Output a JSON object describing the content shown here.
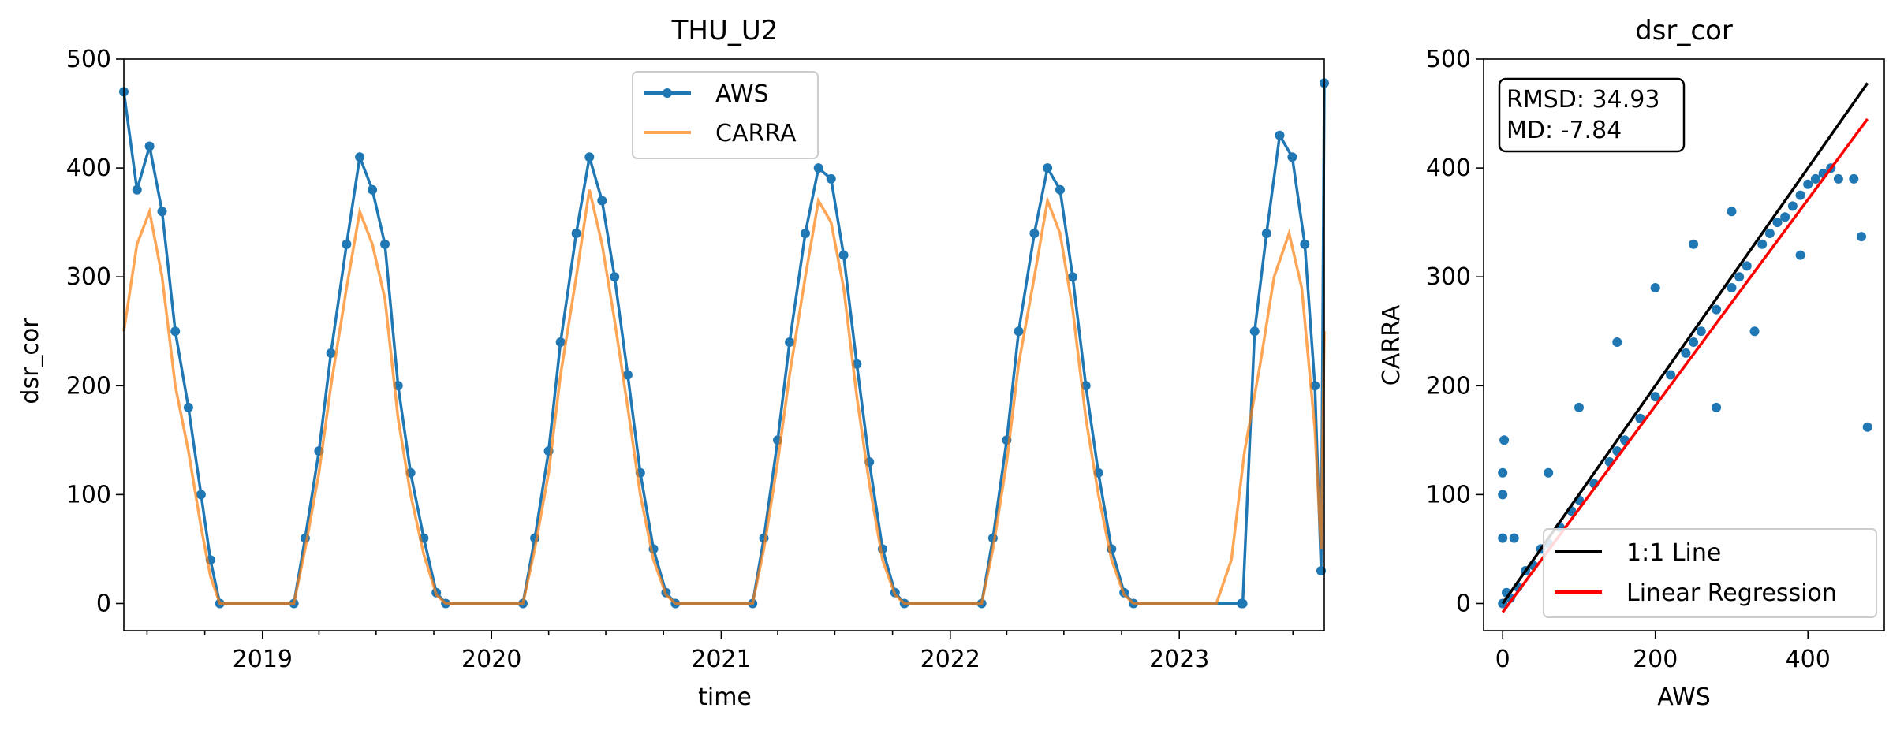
{
  "chart_data": [
    {
      "type": "line",
      "title": "THU_U2",
      "xlabel": "time",
      "ylabel": "dsr_cor",
      "xlim": [
        "2018-05-25",
        "2023-08-20"
      ],
      "ylim": [
        -25,
        500
      ],
      "x_ticks": [
        "2019",
        "2020",
        "2021",
        "2022",
        "2023"
      ],
      "y_ticks": [
        0,
        100,
        200,
        300,
        400,
        500
      ],
      "legend": {
        "placement": "top-center",
        "entries": [
          "AWS",
          "CARRA"
        ]
      },
      "series": [
        {
          "name": "AWS",
          "color": "#1f77b4",
          "marker": "circle",
          "x": [
            "2018-05-25",
            "2018-06-15",
            "2018-07-05",
            "2018-07-25",
            "2018-08-15",
            "2018-09-05",
            "2018-09-25",
            "2018-10-10",
            "2018-10-25",
            "2019-02-20",
            "2019-03-10",
            "2019-04-01",
            "2019-04-20",
            "2019-05-15",
            "2019-06-05",
            "2019-06-25",
            "2019-07-15",
            "2019-08-05",
            "2019-08-25",
            "2019-09-15",
            "2019-10-05",
            "2019-10-20",
            "2020-02-20",
            "2020-03-10",
            "2020-04-01",
            "2020-04-20",
            "2020-05-15",
            "2020-06-05",
            "2020-06-25",
            "2020-07-15",
            "2020-08-05",
            "2020-08-25",
            "2020-09-15",
            "2020-10-05",
            "2020-10-20",
            "2021-02-20",
            "2021-03-10",
            "2021-04-01",
            "2021-04-20",
            "2021-05-15",
            "2021-06-05",
            "2021-06-25",
            "2021-07-15",
            "2021-08-05",
            "2021-08-25",
            "2021-09-15",
            "2021-10-05",
            "2021-10-20",
            "2022-02-20",
            "2022-03-10",
            "2022-04-01",
            "2022-04-20",
            "2022-05-15",
            "2022-06-05",
            "2022-06-25",
            "2022-07-15",
            "2022-08-05",
            "2022-08-25",
            "2022-09-15",
            "2022-10-05",
            "2022-10-20",
            "2023-04-10",
            "2023-04-12",
            "2023-05-01",
            "2023-05-20",
            "2023-06-10",
            "2023-06-30",
            "2023-07-20",
            "2023-08-05",
            "2023-08-15",
            "2023-08-20"
          ],
          "y": [
            470,
            380,
            420,
            360,
            250,
            180,
            100,
            40,
            0,
            0,
            60,
            140,
            230,
            330,
            410,
            380,
            330,
            200,
            120,
            60,
            10,
            0,
            0,
            60,
            140,
            240,
            340,
            410,
            370,
            300,
            210,
            120,
            50,
            10,
            0,
            0,
            60,
            150,
            240,
            340,
            400,
            390,
            320,
            220,
            130,
            50,
            10,
            0,
            0,
            60,
            150,
            250,
            340,
            400,
            380,
            300,
            200,
            120,
            50,
            10,
            0,
            0,
            0,
            250,
            340,
            430,
            410,
            330,
            200,
            30,
            478
          ]
        },
        {
          "name": "CARRA",
          "color": "#ff7f0e",
          "x": [
            "2018-05-25",
            "2018-06-15",
            "2018-07-05",
            "2018-07-25",
            "2018-08-15",
            "2018-09-05",
            "2018-09-25",
            "2018-10-10",
            "2018-10-25",
            "2019-02-20",
            "2019-03-10",
            "2019-04-01",
            "2019-04-20",
            "2019-05-15",
            "2019-06-05",
            "2019-06-25",
            "2019-07-15",
            "2019-08-05",
            "2019-08-25",
            "2019-09-15",
            "2019-10-05",
            "2019-10-20",
            "2020-02-20",
            "2020-03-10",
            "2020-04-01",
            "2020-04-20",
            "2020-05-15",
            "2020-06-05",
            "2020-06-25",
            "2020-07-15",
            "2020-08-05",
            "2020-08-25",
            "2020-09-15",
            "2020-10-05",
            "2020-10-20",
            "2021-02-20",
            "2021-03-10",
            "2021-04-01",
            "2021-04-20",
            "2021-05-15",
            "2021-06-05",
            "2021-06-25",
            "2021-07-15",
            "2021-08-05",
            "2021-08-25",
            "2021-09-15",
            "2021-10-05",
            "2021-10-20",
            "2022-02-20",
            "2022-03-10",
            "2022-04-01",
            "2022-04-20",
            "2022-05-15",
            "2022-06-05",
            "2022-06-25",
            "2022-07-15",
            "2022-08-05",
            "2022-08-25",
            "2022-09-15",
            "2022-10-05",
            "2022-10-20",
            "2023-03-01",
            "2023-03-25",
            "2023-04-15",
            "2023-05-10",
            "2023-06-01",
            "2023-06-25",
            "2023-07-15",
            "2023-08-05",
            "2023-08-15",
            "2023-08-20"
          ],
          "y": [
            250,
            330,
            360,
            300,
            200,
            140,
            70,
            25,
            0,
            0,
            50,
            120,
            200,
            290,
            360,
            330,
            280,
            170,
            100,
            45,
            8,
            0,
            0,
            50,
            120,
            210,
            300,
            380,
            330,
            260,
            180,
            100,
            40,
            8,
            0,
            0,
            50,
            130,
            210,
            300,
            370,
            350,
            290,
            190,
            110,
            40,
            8,
            0,
            0,
            50,
            130,
            220,
            300,
            370,
            340,
            270,
            170,
            100,
            40,
            8,
            0,
            0,
            40,
            140,
            220,
            300,
            340,
            290,
            160,
            50,
            250
          ]
        }
      ]
    },
    {
      "type": "scatter",
      "title": "dsr_cor",
      "xlabel": "AWS",
      "ylabel": "CARRA",
      "xlim": [
        -25,
        500
      ],
      "ylim": [
        -25,
        500
      ],
      "x_ticks": [
        0,
        200,
        400
      ],
      "y_ticks": [
        0,
        100,
        200,
        300,
        400,
        500
      ],
      "annotation": [
        "RMSD: 34.93",
        "MD: -7.84"
      ],
      "legend": {
        "placement": "bottom-right",
        "entries": [
          "1:1 Line",
          "Linear Regression"
        ]
      },
      "series": [
        {
          "name": "",
          "kind": "points",
          "color": "#1f77b4",
          "x": [
            0,
            2,
            5,
            10,
            20,
            30,
            40,
            50,
            60,
            75,
            90,
            100,
            120,
            140,
            150,
            160,
            180,
            200,
            220,
            240,
            250,
            260,
            280,
            300,
            310,
            320,
            340,
            350,
            360,
            370,
            380,
            390,
            400,
            410,
            420,
            430,
            440,
            460,
            470,
            478,
            0,
            0,
            0,
            15,
            60,
            100,
            150,
            200,
            250,
            300,
            280,
            330,
            390
          ],
          "y": [
            0,
            150,
            10,
            5,
            15,
            30,
            35,
            50,
            55,
            70,
            85,
            95,
            110,
            130,
            140,
            150,
            170,
            190,
            210,
            230,
            240,
            250,
            270,
            290,
            300,
            310,
            330,
            340,
            350,
            355,
            365,
            375,
            385,
            390,
            395,
            400,
            390,
            390,
            337,
            162,
            100,
            120,
            60,
            60,
            120,
            180,
            240,
            290,
            330,
            360,
            180,
            250,
            320
          ]
        },
        {
          "name": "1:1 Line",
          "kind": "line",
          "color": "#000000",
          "x": [
            0,
            478
          ],
          "y": [
            0,
            478
          ]
        },
        {
          "name": "Linear Regression",
          "kind": "line",
          "color": "#ff0000",
          "x": [
            0,
            478
          ],
          "y": [
            -8,
            445
          ]
        }
      ]
    }
  ]
}
